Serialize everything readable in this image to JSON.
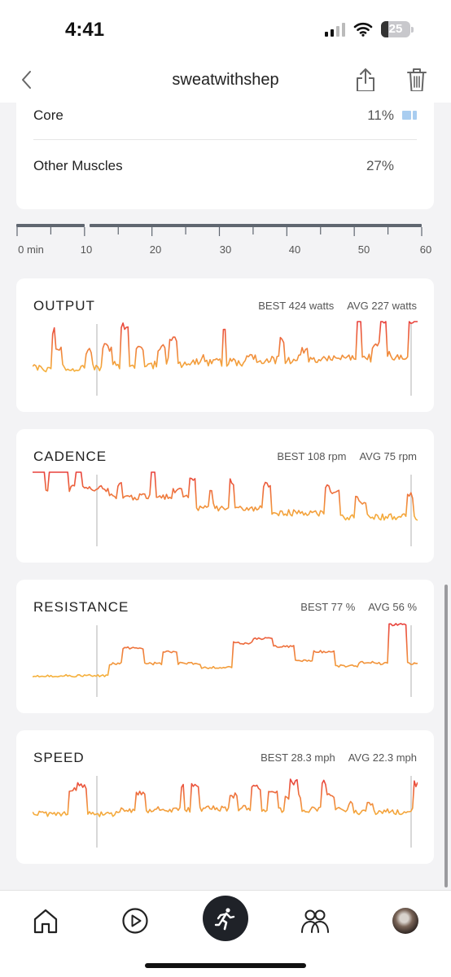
{
  "status_bar": {
    "time": "4:41",
    "battery": "25"
  },
  "nav": {
    "title": "sweatwithshep"
  },
  "muscles": [
    {
      "label": "Core",
      "percent": "11%"
    },
    {
      "label": "Other Muscles",
      "percent": "27%"
    }
  ],
  "timeline": {
    "labels": [
      "0 min",
      "10",
      "20",
      "30",
      "40",
      "50",
      "60"
    ]
  },
  "metrics": {
    "output": {
      "title": "OUTPUT",
      "best": "BEST 424 watts",
      "avg": "AVG 227 watts"
    },
    "cadence": {
      "title": "CADENCE",
      "best": "BEST 108 rpm",
      "avg": "AVG 75 rpm"
    },
    "resistance": {
      "title": "RESISTANCE",
      "best": "BEST 77 %",
      "avg": "AVG 56 %"
    },
    "speed": {
      "title": "SPEED",
      "best": "BEST 28.3 mph",
      "avg": "AVG 22.3 mph"
    }
  },
  "colors": {
    "line_high": "#e8413c",
    "line_low": "#f5b23c",
    "section_marker": "#bdbdbd",
    "core_bar": "#a9cdf0"
  },
  "icons": {
    "back": "chevron-left-icon",
    "share": "share-icon",
    "trash": "trash-icon",
    "tab_home": "home-icon",
    "tab_classes": "play-circle-icon",
    "tab_activity": "running-person-icon",
    "tab_community": "people-icon",
    "tab_profile": "avatar"
  },
  "tabs": {
    "active": "activity"
  }
}
